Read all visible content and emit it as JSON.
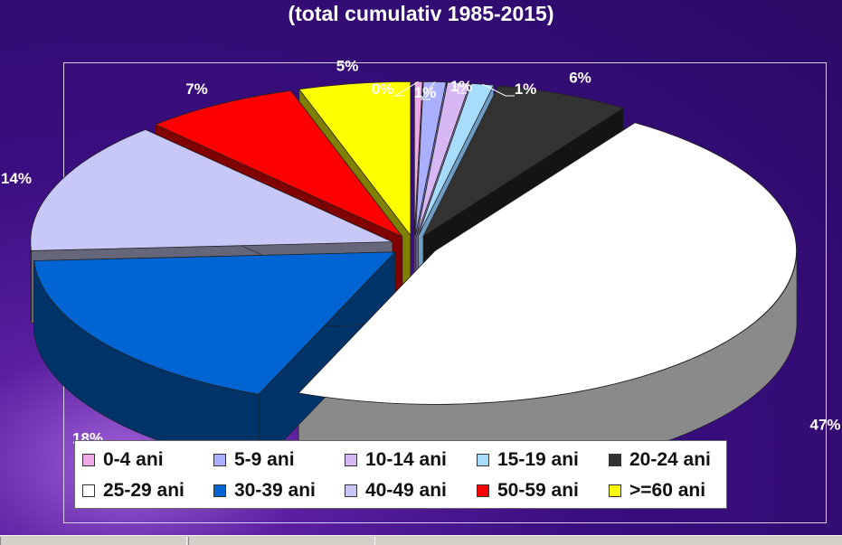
{
  "chart_data": {
    "type": "pie",
    "title": "(total cumulativ 1985-2015)",
    "categories": [
      "0-4 ani",
      "5-9 ani",
      "10-14 ani",
      "15-19 ani",
      "20-24 ani",
      "25-29 ani",
      "30-39 ani",
      "40-49 ani",
      "50-59 ani",
      ">=60 ani"
    ],
    "values": [
      0,
      1,
      1,
      1,
      6,
      47,
      18,
      14,
      7,
      5
    ],
    "data_labels": [
      "0%",
      "1%",
      "1%",
      "1%",
      "6%",
      "47%",
      "18%",
      "14%",
      "7%",
      "5%"
    ],
    "legend_position": "bottom",
    "three_d": true,
    "exploded": true
  },
  "colors": {
    "0-4 ani": "#f0a8e8",
    "5-9 ani": "#aab0ff",
    "10-14 ani": "#d8b8f4",
    "15-19 ani": "#a8dcff",
    "20-24 ani": "#333333",
    "25-29 ani": "#ffffff",
    "30-39 ani": "#0064d2",
    "40-49 ani": "#c8c8f8",
    "50-59 ani": "#ff0000",
    ">=60 ani": "#ffff00"
  }
}
